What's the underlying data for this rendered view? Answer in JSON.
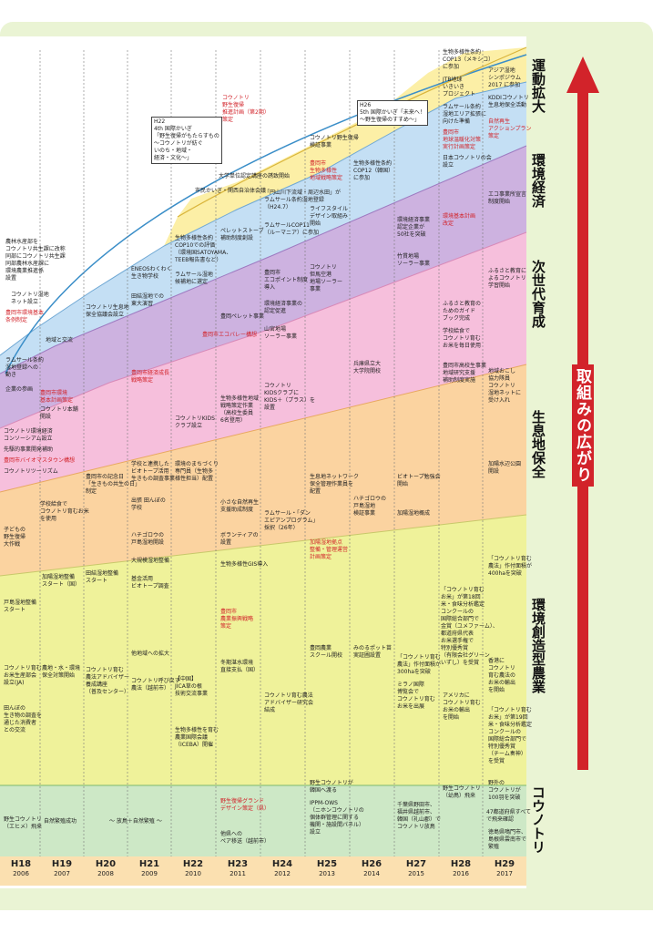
{
  "years": [
    {
      "era": "H18",
      "ad": "2006"
    },
    {
      "era": "H19",
      "ad": "2007"
    },
    {
      "era": "H20",
      "ad": "2008"
    },
    {
      "era": "H21",
      "ad": "2009"
    },
    {
      "era": "H22",
      "ad": "2010"
    },
    {
      "era": "H23",
      "ad": "2011"
    },
    {
      "era": "H24",
      "ad": "2012"
    },
    {
      "era": "H25",
      "ad": "2013"
    },
    {
      "era": "H26",
      "ad": "2014"
    },
    {
      "era": "H27",
      "ad": "2015"
    },
    {
      "era": "H28",
      "ad": "2016"
    },
    {
      "era": "H29",
      "ad": "2017"
    }
  ],
  "categories": {
    "movement": "運動拡大",
    "econ": "環境経済",
    "nextgen": "次世代育成",
    "habitat": "生息地保全",
    "agri": "環境創造型農業",
    "stork": "コウノトリ"
  },
  "axis_label": "取組みの広がり",
  "colors": {
    "stork": "#cde8c6",
    "agri": "#eff29a",
    "habitat": "#fbd3a0",
    "nextgen": "#f6bfdc",
    "econ": "#cdb2e0",
    "env": "#c4dff4",
    "movement": "#fcefa6",
    "arrow": "#d2232a"
  },
  "events": {
    "e01": "農林水産部を\nコウノトリ共生課に改称\n同部にコウノトリ共生課\n同部農林水産課に\n環境農業推進係\n設置",
    "e02": "コウノトリ湿地\nネット設立",
    "e03": "豊岡市環境基本\n条例制定",
    "e04": "地域と交流",
    "e05": "ラムサール条約\n湿地登録への\n動き",
    "e06": "企業の参画",
    "e07": "豊岡市環境\n基本計画策定",
    "e08": "コウノトリ本舗\n開設",
    "e09": "コウノトリ環境経済\nコンソーシアム設立",
    "e10": "先駆的事業開発補助",
    "e11": "豊岡市バイオマスタウン構想",
    "e12": "コウノトリツーリズム",
    "e13": "学校給食で\nコウノトリ育むお米\nを使用",
    "e14": "子どもの\n野生復帰\n大作戦",
    "e15": "加陽湿地整備\nスタート（国）",
    "e16": "戸島湿地整備\nスタート",
    "e17": "コウノトリ育む\nお米生産部会\n設立(JA)",
    "e18": "田んぼの\n生き物の調査を\n通じた消費者\nとの交流",
    "e19": "農地・水・環境\n保全対策開始",
    "e20": "野生コウノトリ\n（エヒメ）飛来",
    "e21": "自然繁殖成功",
    "e22": "～ 放鳥＋自然繁殖 ～",
    "e23": "コウノトリ生息地\n保全協議会設立",
    "e24": "豊岡市の記念日\n「生きもの共生の日」\n制定",
    "e25": "田結湿地整備\nスタート",
    "e26": "コウノトリ育む\n農法アドバイザー\n養成講座\n（普及センター）",
    "e27": "ENEOSわくわく\n生き物学校",
    "e28": "田結湿地での\n東大演習",
    "e29": "豊岡市経済成長\n戦略策定",
    "e30": "学校と連携した\nビオトープ活用\n生きもの調査事業",
    "e31": "出張 田んぼの\n学校",
    "e32": "ハチゴロウの\n戸島湿地開設",
    "e33": "大規模湿地整備",
    "e34": "基金活用\nビオトープ調査",
    "e35": "他地域への拡大",
    "e36": "コウノトリ呼び戻す\n農法（越前市）",
    "e37": "H22\n4th 国際かいぎ\n「野生復帰がもたらすもの\n～コウノトリが紡ぐ\nいのち・地域・\n経済・文化～」",
    "e38": "生物多様性条約\nCOP10での評価\n（環境国SATOYAMA、\nTEEB報告書など）",
    "e39": "ラムサール湿地\n候補地に選定",
    "e40": "環境のまちづくり\n専門員（生物多\n様性担当）配置",
    "e41": "コウノトリKIDS\nクラブ設立",
    "e42": "【中国】\nJICA草の根\n技術交流事業",
    "e43": "生物多様性を育む\n農業国際会議\n（ICEBA）開催",
    "e44": "コウノトリ\n野生復帰\n推進計画（第2期）\n策定",
    "e45": "市民かいぎ・関西自治体会議",
    "e46": "大学単位認定講座の誘致開始",
    "e47": "ペレットストーブ\n補助制度創設",
    "e48": "豊岡ペレット事業",
    "e49": "豊岡市エコバレー構想",
    "e50": "生物多様性地域\n戦略策定作業\n（高校生委員\n6名登用）",
    "e51": "小さな自然再生\n支援助成制度",
    "e52": "ボランティアの\n設置",
    "e53": "生物多様性GIS導入",
    "e54": "豊岡市\n農業振興戦略\n策定",
    "e55": "冬期湛水環境\n直接支払（国）",
    "e56": "コウノトリ育む農法\nアドバイザー研究会\n結成",
    "e57": "野生復帰グランド\nデザイン策定（県）",
    "e58": "他県への\nペア移送（越前市）",
    "e59": "「円山川下流域・周辺水田」が\nラムサール条約湿地登録\n（H24.7）",
    "e60": "ラムサールCOP11\n（ルーマニア）に参加",
    "e61": "豊岡市\nエコポイント制度\n導入",
    "e62": "コウノトリ\nKIDSクラブに\nKIDS＋（プラス）を\n設置",
    "e63": "ラムサール・「ダン\nエピアンプログラム」\n採択（26年）",
    "e64": "コウノトリ野生復帰\n検証事業",
    "e65": "豊岡市\n生物多様性\n地域戦略策定",
    "e66": "ライフスタイル\nデザイン取組み\n開始",
    "e67": "コウノトリ\n但馬空港\n地場ソーラー\n事業",
    "e68": "環境経済事業の\n認定促進",
    "e69": "山宮地場\nソーラー事業",
    "e70": "生息地ネットワーク\n保全管理作業員を\n配置",
    "e71": "加陽湿地拠点\n整備・管理運営\n計画策定",
    "e72": "ハチゴロウの\n戸島湿地\n検証事業",
    "e73": "豊岡農業\nスクール開校",
    "e74": "IPPM-OWS\n（ニホンコウノトリの\n個体群管理に関する\n機関・施設間パネル）\n設立",
    "e75": "野生コウノトリが\n韓国へ渡る",
    "e76": "H26\n5th 国際かいぎ「未来へ！\n～野生復帰のすすめ～」",
    "e77": "生物多様性条約\nCOP12（韓国）\nに参加",
    "e78": "兵庫県立大\n大学院開校",
    "e79": "みのるポット苗\n実証圃設置",
    "e80": "生物多様性条約\nCOP13（メキシコ）\nに参加",
    "e81": "JTB地球\nいきいき\nプロジェクト",
    "e82": "ラムサール条約\n湿地エリア拡張に\n向けた準備",
    "e83": "豊岡市\n地球温暖化対策\n実行計画策定",
    "e84": "日本コウノトリの会\n設立",
    "e85": "環境基本計画\n改定",
    "e86": "環境経済事業\n認定企業が\n50社を突破",
    "e87": "竹貫地場\nソーラー事業",
    "e88": "ふるさと教育の\nためのガイド\nブック完成",
    "e89": "学校給食で\nコウノトリ育む\nお米を毎日使用",
    "e90": "豊岡市高校生事業\n地域研究支援\n補助制度実施",
    "e91": "ビオトープ勉強会\n開始",
    "e92": "加陽湿地概成",
    "e93": "「コウノトリ育む\nお米」が第18回\n米・食味分析鑑定\nコンクールの\n国際総合部門で\n金賞（ユメファーム）、\n都道府県代表\nお米選手権で\n特別優秀賞\n（有限会社グリーン\nいずし）を受賞",
    "e94": "「コウノトリ育む\n農法」作付面積が\n300haを突破",
    "e95": "ミラノ国際\n博覧会で\nコウノトリ育む\nお米を出展",
    "e96": "アメリカに\nコウノトリ育む\nお米の輸出\nを開始",
    "e97": "千葉県野田市、\n福井県越前市、\n韓国（礼山郡）で\nコウノトリ放鳥",
    "e98": "野生コウノトリ\n（幼鳥）飛来",
    "e99": "アジア湿地\nシンポジウム\n2017 に参加",
    "e100": "KDDIコウノトリ\n生息地保全活動",
    "e101": "自然再生\nアクションプラン\n策定",
    "e102": "エコ事業所宣言\n制度開始",
    "e103": "ふるさと教育に\nよるコウノトリ\n学習開始",
    "e104": "地域おこし\n協力隊員\nコウノトリ\n湿地ネットに\n受け入れ",
    "e105": "加陽水辺公園\n開設",
    "e106": "「コウノトリ育む\n農法」作付面積が\n400haを突破",
    "e107": "香港に\nコウノトリ\n育む農法の\nお米の輸出\nを開始",
    "e108": "「コウノトリ育む\nお米」が第19回\n米・食味分析鑑定\nコンクールの\n国際総合部門で\n特別優秀賞\n（チーム奏神）\nを受賞",
    "e109": "野外の\nコウノトリが\n100羽を突破",
    "e110": "47都道府県すべて\nで飛来確認",
    "e111": "徳島県鳴門市、\n島根県雲南市で\n繁殖"
  }
}
